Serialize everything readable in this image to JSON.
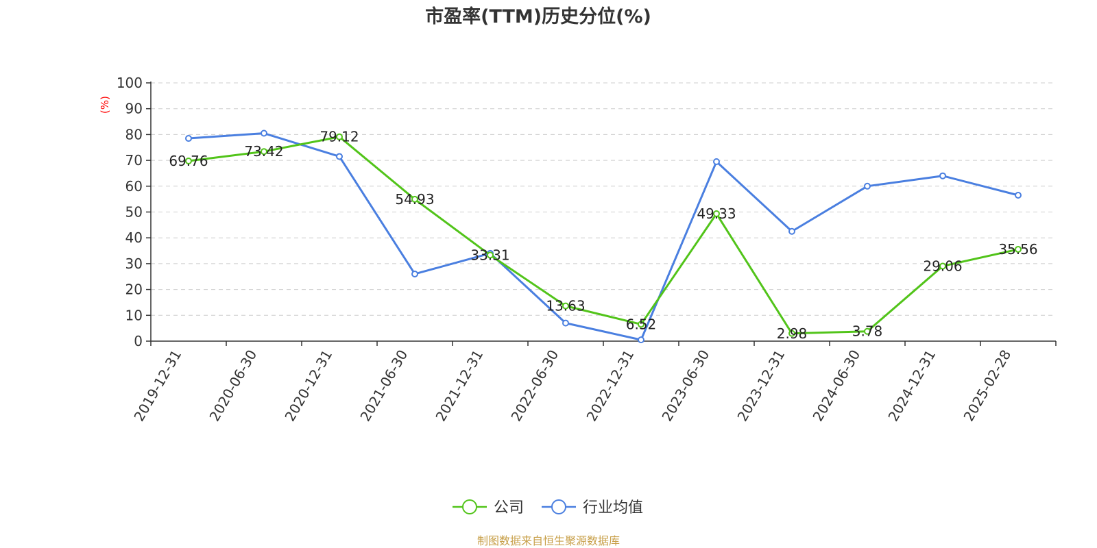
{
  "chart_data": {
    "type": "line",
    "title": "市盈率(TTM)历史分位(%)",
    "ylabel": "(%)",
    "xlabel": "",
    "ylim": [
      0,
      100
    ],
    "yticks": [
      0,
      10,
      20,
      30,
      40,
      50,
      60,
      70,
      80,
      90,
      100
    ],
    "grid": "horizontal dashed",
    "legend_position": "bottom-center",
    "categories": [
      "2019-12-31",
      "2020-06-30",
      "2020-12-31",
      "2021-06-30",
      "2021-12-31",
      "2022-06-30",
      "2022-12-31",
      "2023-06-30",
      "2023-12-31",
      "2024-06-30",
      "2024-12-31",
      "2025-02-28"
    ],
    "series": [
      {
        "name": "公司",
        "color": "#52c41a",
        "values": [
          69.76,
          73.42,
          79.12,
          54.93,
          33.31,
          13.63,
          6.52,
          49.33,
          2.98,
          3.78,
          29.06,
          35.56
        ],
        "labels": [
          "69.76",
          "73.42",
          "79.12",
          "54.93",
          "33.31",
          "13.63",
          "6.52",
          "49.33",
          "2.98",
          "3.78",
          "29.06",
          "35.56"
        ]
      },
      {
        "name": "行业均值",
        "color": "#4a7fe0",
        "values": [
          78.5,
          80.5,
          71.5,
          26.0,
          34.0,
          7.0,
          0.5,
          69.5,
          42.5,
          60.0,
          64.0,
          56.5
        ]
      }
    ]
  },
  "source": "制图数据来自恒生聚源数据库"
}
